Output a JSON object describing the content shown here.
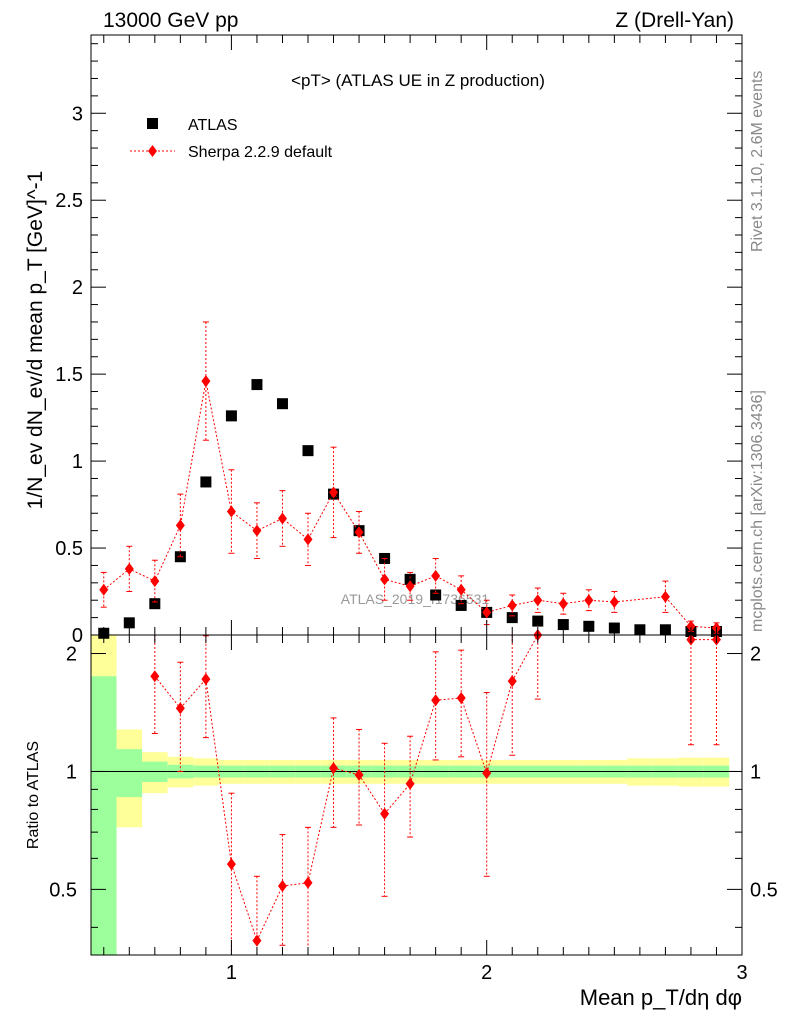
{
  "header": {
    "energy": "13000 GeV pp",
    "process": "Z (Drell-Yan)"
  },
  "side": {
    "rivet": "Rivet 3.1.10,  2.6M events",
    "mcplots": "mcplots.cern.ch [arXiv:1306.3436]"
  },
  "chart_data": {
    "type": "scatter",
    "title": "<pT> (ATLAS UE in Z production)",
    "watermark": "ATLAS_2019_I1736531",
    "xlabel": "Mean p_T/dη dφ",
    "ylabel": "1/N_ev dN_ev/d mean p_T [GeV]^-1",
    "ratio_ylabel": "Ratio to ATLAS",
    "xlim": [
      0.45,
      3.0
    ],
    "ylim": [
      0,
      3.45
    ],
    "ratio_ylim": [
      0.34,
      2.23
    ],
    "xticks": [
      "1",
      "2",
      "3"
    ],
    "yticks": [
      "0",
      "0.5",
      "1",
      "1.5",
      "2",
      "2.5",
      "3"
    ],
    "ratio_yticks": [
      "0.5",
      "1",
      "2"
    ],
    "legend": {
      "data_label": "ATLAS",
      "mc_label": "Sherpa 2.2.9 default",
      "placement": "top-left"
    },
    "x": [
      0.5,
      0.6,
      0.7,
      0.8,
      0.9,
      1.0,
      1.1,
      1.2,
      1.3,
      1.4,
      1.5,
      1.6,
      1.7,
      1.8,
      1.9,
      2.0,
      2.1,
      2.2,
      2.3,
      2.4,
      2.5,
      2.6,
      2.7,
      2.8,
      2.9
    ],
    "series": [
      {
        "name": "ATLAS",
        "color": "#000000",
        "values": [
          0.01,
          0.07,
          0.18,
          0.45,
          0.88,
          1.26,
          1.44,
          1.33,
          1.06,
          0.81,
          0.6,
          0.44,
          0.32,
          0.23,
          0.17,
          0.13,
          0.1,
          0.08,
          0.06,
          0.05,
          0.04,
          0.03,
          0.03,
          0.02,
          0.02
        ]
      },
      {
        "name": "Sherpa 2.2.9 default",
        "color": "#ff0000",
        "values": [
          0.26,
          0.38,
          0.31,
          0.63,
          1.46,
          0.71,
          0.6,
          0.67,
          0.55,
          0.82,
          0.59,
          0.32,
          0.28,
          0.34,
          0.26,
          0.13,
          0.17,
          0.2,
          0.18,
          0.2,
          0.19,
          null,
          0.22,
          0.05,
          0.04
        ],
        "errors": [
          0.1,
          0.13,
          0.12,
          0.18,
          0.34,
          0.24,
          0.16,
          0.16,
          0.15,
          0.26,
          0.12,
          0.12,
          0.08,
          0.1,
          0.08,
          0.07,
          0.06,
          0.07,
          0.06,
          0.06,
          0.06,
          null,
          0.09,
          0.03,
          0.03
        ]
      }
    ],
    "ratio": {
      "values": [
        null,
        null,
        1.75,
        1.45,
        1.72,
        0.58,
        0.37,
        0.51,
        0.52,
        1.02,
        0.98,
        0.78,
        0.93,
        1.52,
        1.54,
        0.99,
        1.7,
        2.23,
        null,
        null,
        null,
        null,
        null,
        2.17,
        2.17
      ],
      "err_up": [
        null,
        null,
        0.5,
        0.45,
        0.5,
        0.3,
        0.17,
        0.18,
        0.2,
        0.35,
        0.3,
        0.4,
        0.3,
        0.5,
        0.5,
        0.6,
        0.8,
        0.6,
        null,
        null,
        null,
        null,
        null,
        1.0,
        1.0
      ],
      "err_down": [
        null,
        null,
        0.5,
        0.45,
        0.5,
        0.25,
        0.15,
        0.15,
        0.18,
        0.3,
        0.25,
        0.3,
        0.25,
        0.45,
        0.45,
        0.45,
        0.6,
        0.7,
        null,
        null,
        null,
        null,
        null,
        1.0,
        1.0
      ],
      "band_inner": [
        0.75,
        0.14,
        0.06,
        0.04,
        0.035,
        0.035,
        0.035,
        0.035,
        0.035,
        0.035,
        0.035,
        0.035,
        0.035,
        0.035,
        0.035,
        0.035,
        0.035,
        0.035,
        0.035,
        0.035,
        0.035,
        0.035,
        0.035,
        0.035,
        0.035
      ],
      "band_outer": [
        1.25,
        0.28,
        0.12,
        0.09,
        0.08,
        0.07,
        0.07,
        0.07,
        0.07,
        0.07,
        0.07,
        0.07,
        0.07,
        0.07,
        0.07,
        0.07,
        0.07,
        0.07,
        0.07,
        0.07,
        0.07,
        0.08,
        0.08,
        0.085,
        0.085
      ],
      "band_colors": {
        "inner": "#9cff9c",
        "outer": "#ffff99"
      }
    }
  }
}
